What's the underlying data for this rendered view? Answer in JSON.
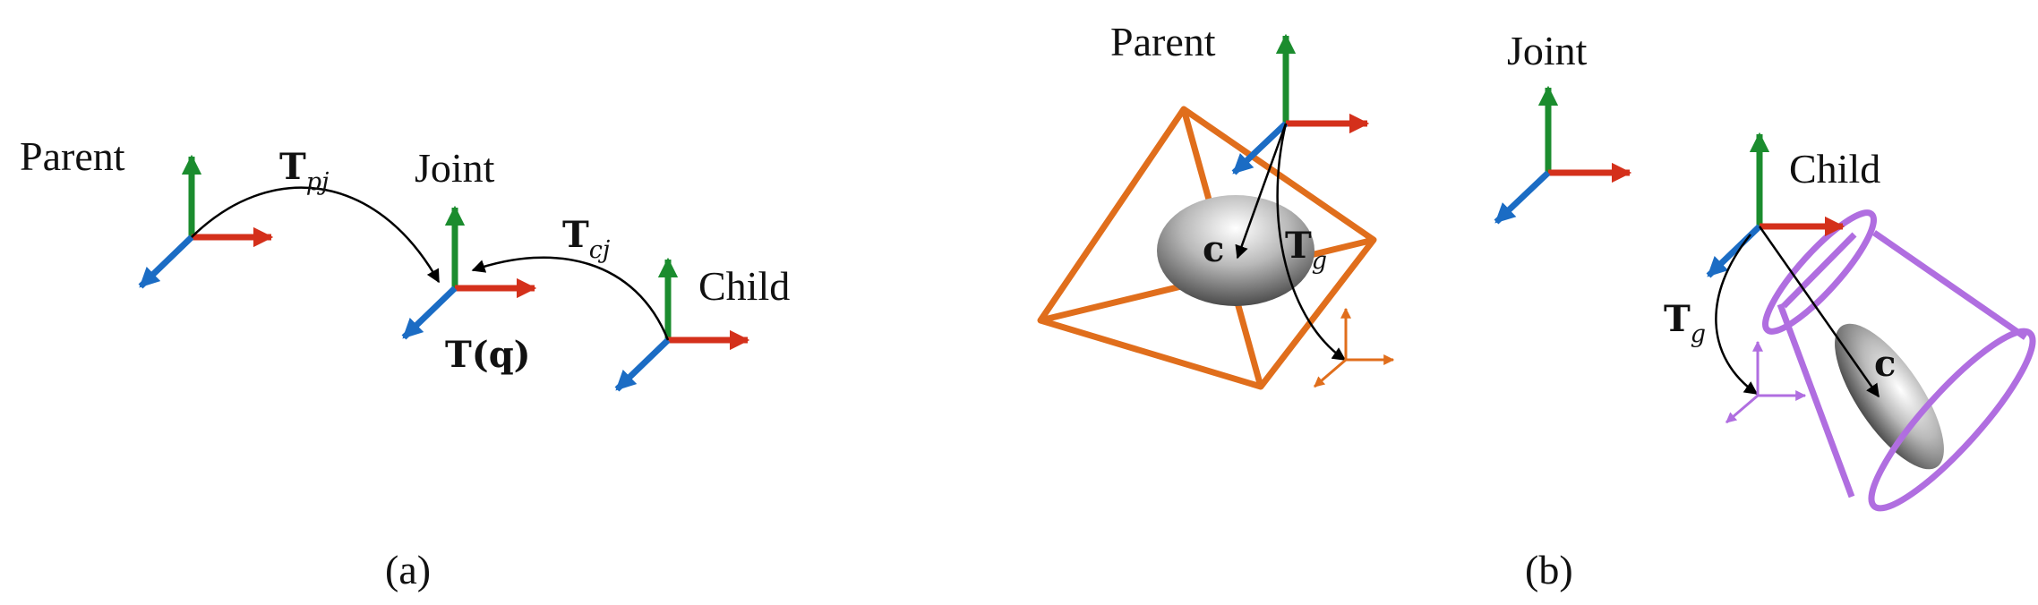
{
  "panel_a": {
    "parent_label": "Parent",
    "joint_label": "Joint",
    "child_label": "Child",
    "t_pj": {
      "main": "T",
      "sub": "pj"
    },
    "t_cj": {
      "main": "T",
      "sub": "cj"
    },
    "t_q": "T(q)",
    "caption": "(a)"
  },
  "panel_b": {
    "parent_label": "Parent",
    "joint_label": "Joint",
    "child_label": "Child",
    "centroid_label": "c",
    "t_g": {
      "main": "T",
      "sub": "g"
    },
    "caption": "(b)"
  },
  "colors": {
    "axis_x": "#d4301b",
    "axis_y": "#1b8c2e",
    "axis_z": "#1b6cc4",
    "parent_geometry": "#e06e1c",
    "child_geometry": "#b06ee0"
  }
}
